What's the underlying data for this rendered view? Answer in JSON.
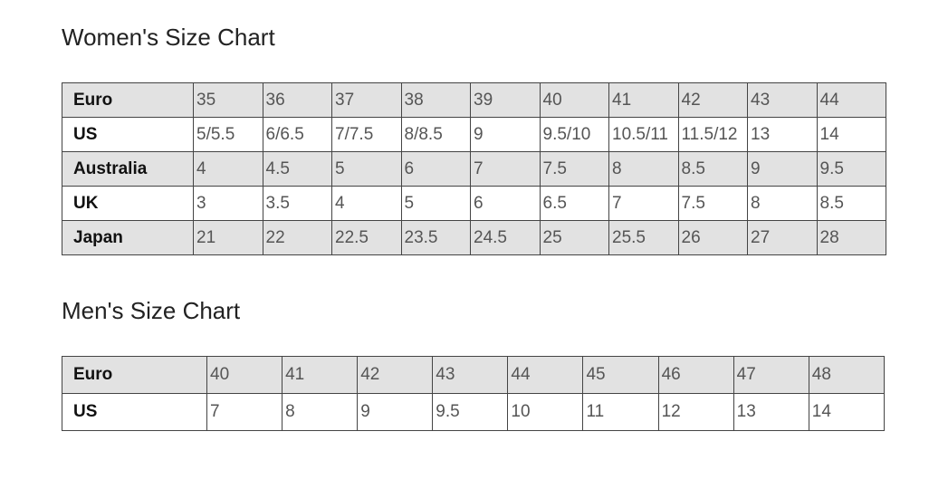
{
  "women": {
    "title": "Women's Size Chart",
    "rows": [
      {
        "label": "Euro",
        "values": [
          "35",
          "36",
          "37",
          "38",
          "39",
          "40",
          "41",
          "42",
          "43",
          "44"
        ]
      },
      {
        "label": "US",
        "values": [
          "5/5.5",
          "6/6.5",
          "7/7.5",
          "8/8.5",
          "9",
          "9.5/10",
          "10.5/11",
          "11.5/12",
          "13",
          "14"
        ]
      },
      {
        "label": "Australia",
        "values": [
          "4",
          "4.5",
          "5",
          "6",
          "7",
          "7.5",
          "8",
          "8.5",
          "9",
          "9.5"
        ]
      },
      {
        "label": "UK",
        "values": [
          "3",
          "3.5",
          "4",
          "5",
          "6",
          "6.5",
          "7",
          "7.5",
          "8",
          "8.5"
        ]
      },
      {
        "label": "Japan",
        "values": [
          "21",
          "22",
          "22.5",
          "23.5",
          "24.5",
          "25",
          "25.5",
          "26",
          "27",
          "28"
        ]
      }
    ]
  },
  "men": {
    "title": "Men's Size Chart",
    "rows": [
      {
        "label": "Euro",
        "values": [
          "40",
          "41",
          "42",
          "43",
          "44",
          "45",
          "46",
          "47",
          "48"
        ]
      },
      {
        "label": "US",
        "values": [
          "7",
          "8",
          "9",
          "9.5",
          "10",
          "11",
          "12",
          "13",
          "14"
        ]
      }
    ]
  },
  "colors": {
    "shade": "#e2e2e2",
    "border": "#444444"
  }
}
